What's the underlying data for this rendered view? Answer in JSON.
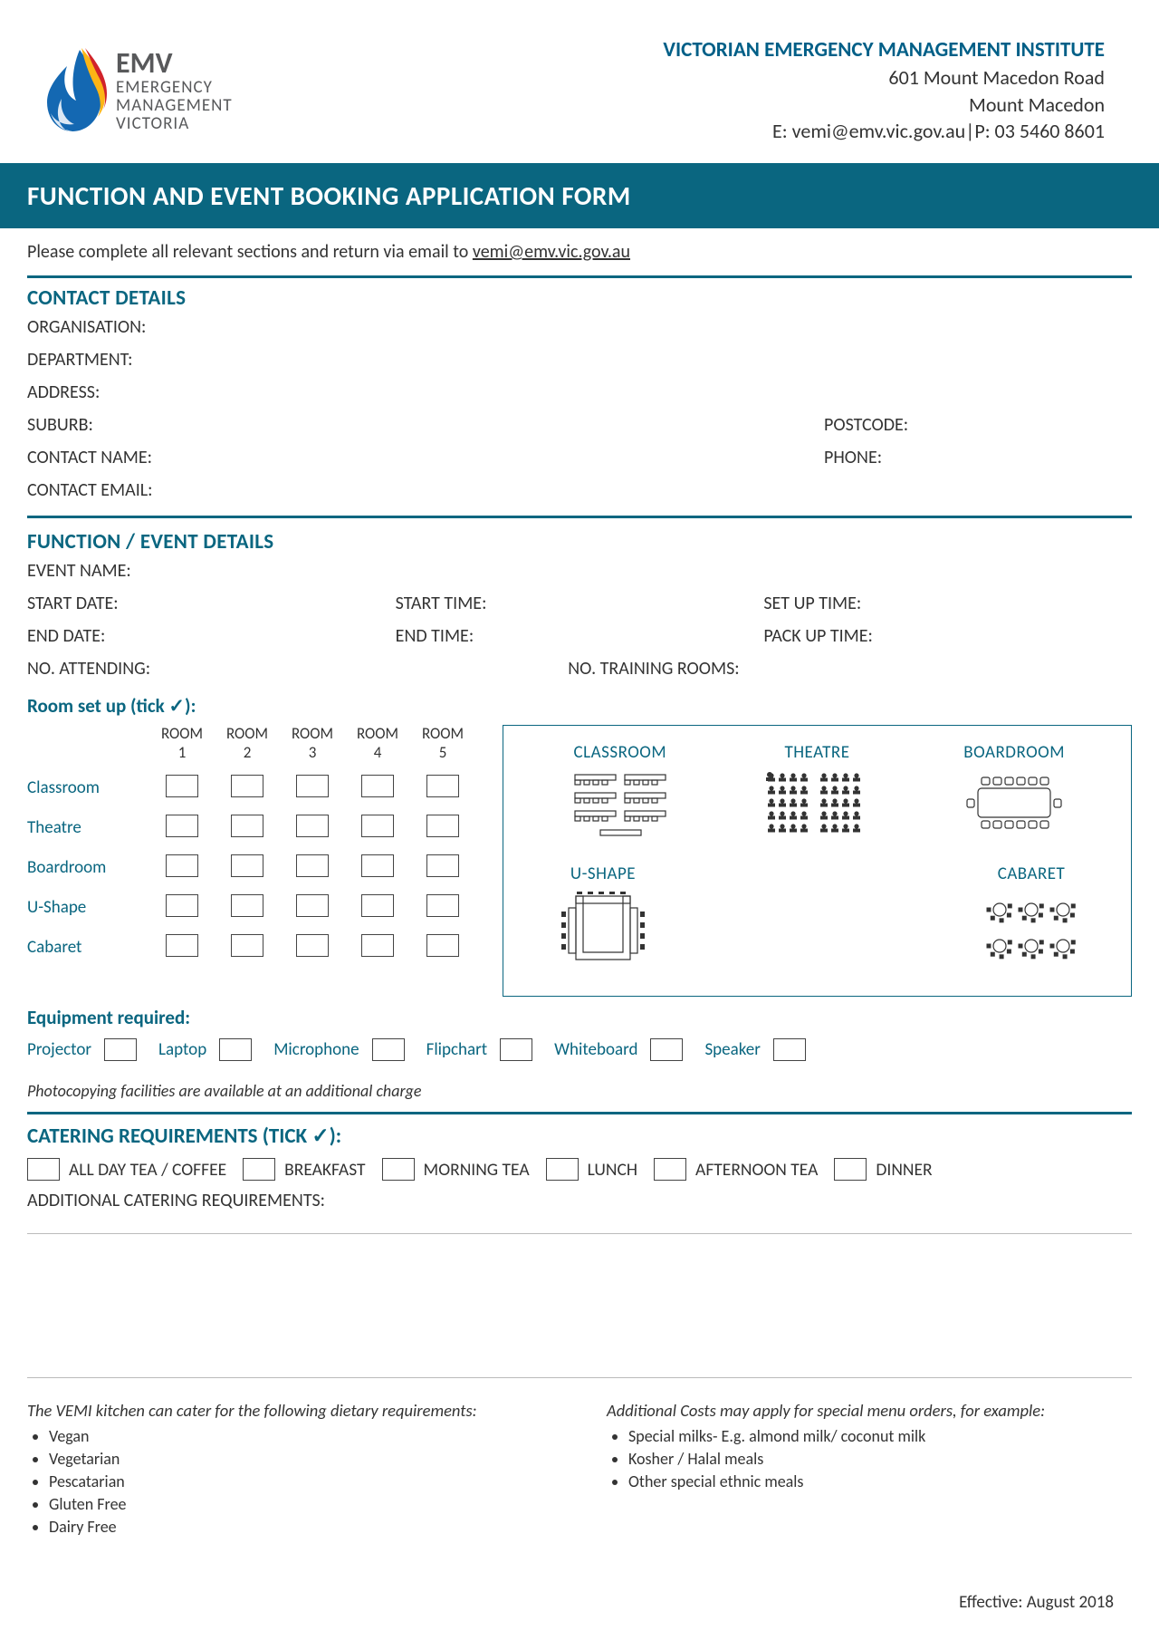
{
  "colors": {
    "brand_teal": "#0a6680",
    "text": "#333333",
    "logo_grey": "#58595b",
    "logo_red": "#d1232a",
    "logo_yellow": "#fdb515",
    "logo_blue": "#1468b2",
    "border_light": "#bbbbbb"
  },
  "header": {
    "logo_acronym": "EMV",
    "logo_line1": "EMERGENCY",
    "logo_line2": "MANAGEMENT",
    "logo_line3": "VICTORIA",
    "institute": "VICTORIAN EMERGENCY MANAGEMENT INSTITUTE",
    "address_line1": "601 Mount Macedon Road",
    "address_line2": "Mount Macedon",
    "contact_line": "E: vemi@emv.vic.gov.au|P: 03 5460 8601"
  },
  "title": "FUNCTION AND EVENT BOOKING APPLICATION FORM",
  "instruction_prefix": "Please complete all relevant sections and return via email to ",
  "instruction_email": "vemi@emv.vic.gov.au",
  "contact_section": {
    "heading": "CONTACT DETAILS",
    "fields": {
      "organisation": "ORGANISATION:",
      "department": "DEPARTMENT:",
      "address": "ADDRESS:",
      "suburb": "SUBURB:",
      "postcode": "POSTCODE:",
      "contact_name": "CONTACT NAME:",
      "phone": "PHONE:",
      "contact_email": "CONTACT EMAIL:"
    }
  },
  "event_section": {
    "heading": "FUNCTION / EVENT DETAILS",
    "fields": {
      "event_name": "EVENT NAME:",
      "start_date": "START DATE:",
      "start_time": "START TIME:",
      "setup_time": "SET UP TIME:",
      "end_date": "END DATE:",
      "end_time": "END TIME:",
      "packup_time": "PACK UP TIME:",
      "attending": "NO. ATTENDING:",
      "training_rooms": "NO. TRAINING ROOMS:"
    },
    "room_setup_heading": "Room set up (tick ✓):",
    "room_cols": [
      "ROOM 1",
      "ROOM 2",
      "ROOM 3",
      "ROOM 4",
      "ROOM 5"
    ],
    "room_rows": [
      "Classroom",
      "Theatre",
      "Boardroom",
      "U-Shape",
      "Cabaret"
    ],
    "diagram_labels": {
      "classroom": "CLASSROOM",
      "theatre": "THEATRE",
      "boardroom": "BOARDROOM",
      "ushape": "U-SHAPE",
      "cabaret": "CABARET"
    },
    "equipment_heading": "Equipment required:",
    "equipment": [
      "Projector",
      "Laptop",
      "Microphone",
      "Flipchart",
      "Whiteboard",
      "Speaker"
    ],
    "photocopy_note": "Photocopying facilities are available at an additional charge"
  },
  "catering": {
    "heading": "CATERING REQUIREMENTS (TICK ✓):",
    "options": [
      "ALL DAY TEA / COFFEE",
      "BREAKFAST",
      "MORNING TEA",
      "LUNCH",
      "AFTERNOON TEA",
      "DINNER"
    ],
    "additional_label": "ADDITIONAL CATERING REQUIREMENTS:"
  },
  "dietary": {
    "intro_left": "The VEMI kitchen can cater for the following dietary requirements:",
    "left_items": [
      "Vegan",
      "Vegetarian",
      "Pescatarian",
      "Gluten Free",
      "Dairy Free"
    ],
    "intro_right": "Additional Costs may apply for special menu orders, for example:",
    "right_items": [
      "Special milks- E.g. almond milk/ coconut milk",
      "Kosher / Halal meals",
      "Other special ethnic meals"
    ]
  },
  "effective": "Effective: August 2018"
}
